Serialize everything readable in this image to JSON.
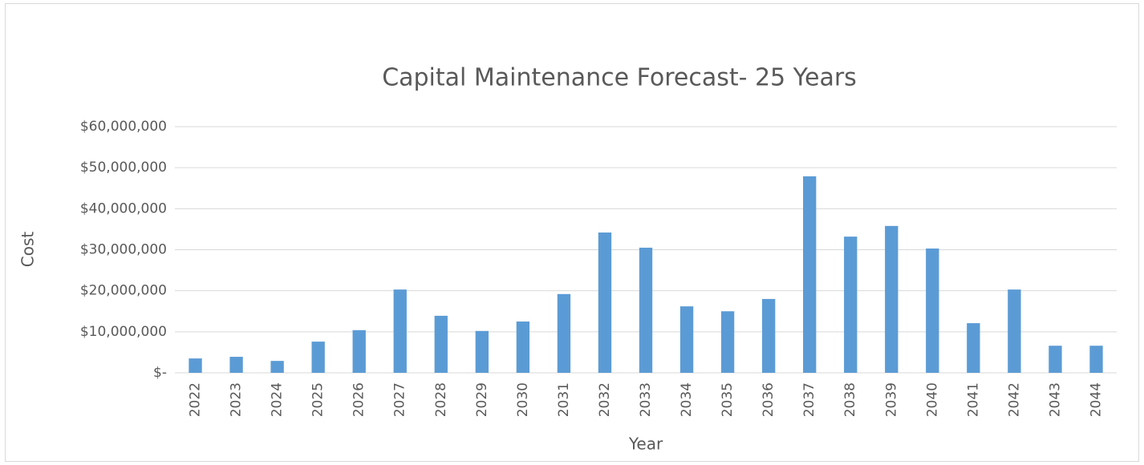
{
  "chart_data": {
    "type": "bar",
    "title": "Capital Maintenance Forecast- 25 Years",
    "x_label": "Year",
    "y_label": "Cost",
    "categories": [
      "2022",
      "2023",
      "2024",
      "2025",
      "2026",
      "2027",
      "2028",
      "2029",
      "2030",
      "2031",
      "2032",
      "2033",
      "2034",
      "2035",
      "2036",
      "2037",
      "2038",
      "2039",
      "2040",
      "2041",
      "2042",
      "2043",
      "2044"
    ],
    "values": [
      3500000,
      3900000,
      2900000,
      7600000,
      10400000,
      20300000,
      13900000,
      10200000,
      12500000,
      19200000,
      34200000,
      30500000,
      16200000,
      15000000,
      18000000,
      47900000,
      33200000,
      35800000,
      30300000,
      12100000,
      20300000,
      6600000,
      6600000
    ],
    "color": "#5b9bd5",
    "ylim": [
      0,
      60000000
    ],
    "yticks": [
      {
        "value": 0,
        "label": "$-"
      },
      {
        "value": 10000000,
        "label": "$10,000,000"
      },
      {
        "value": 20000000,
        "label": "$20,000,000"
      },
      {
        "value": 30000000,
        "label": "$30,000,000"
      },
      {
        "value": 40000000,
        "label": "$40,000,000"
      },
      {
        "value": 50000000,
        "label": "$50,000,000"
      },
      {
        "value": 60000000,
        "label": "$60,000,000"
      }
    ],
    "grid": true
  }
}
